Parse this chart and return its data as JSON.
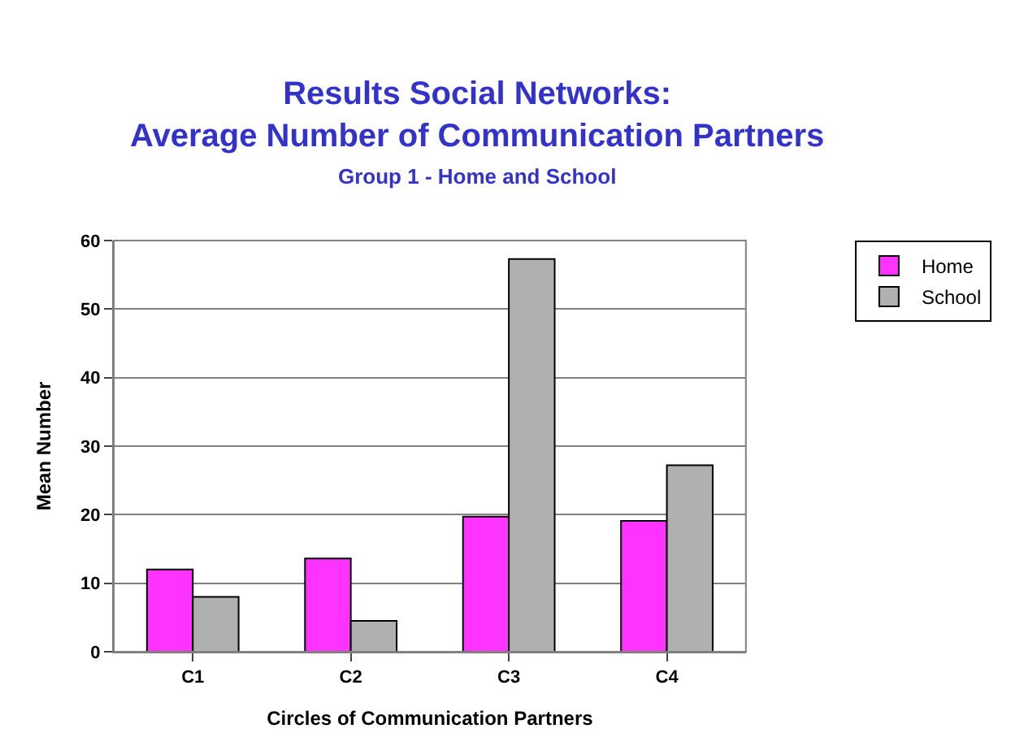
{
  "chart_data": {
    "type": "bar",
    "title": "Results Social Networks:\nAverage Number of Communication Partners",
    "subtitle": "Group 1 - Home and School",
    "xlabel": "Circles of Communication Partners",
    "ylabel": "Mean Number",
    "categories": [
      "C1",
      "C2",
      "C3",
      "C4"
    ],
    "series": [
      {
        "name": "Home",
        "color": "#ff33ff",
        "values": [
          12.0,
          13.6,
          19.7,
          19.1
        ]
      },
      {
        "name": "School",
        "color": "#b0b0b0",
        "values": [
          8.0,
          4.5,
          57.3,
          27.2
        ]
      }
    ],
    "ylim": [
      0,
      60
    ],
    "yticks": [
      0,
      10,
      20,
      30,
      40,
      50,
      60
    ],
    "grid": "y",
    "legend": "right"
  }
}
